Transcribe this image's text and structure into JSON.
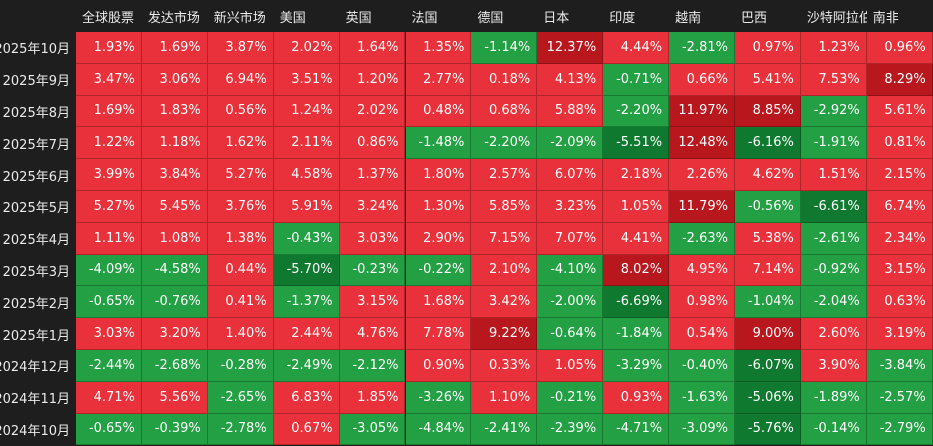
{
  "chart_data": {
    "type": "heatmap",
    "columns": [
      "全球股票",
      "发达市场",
      "新兴市场",
      "美国",
      "英国",
      "法国",
      "德国",
      "日本",
      "印度",
      "越南",
      "巴西",
      "沙特阿拉伯",
      "南非"
    ],
    "rows": [
      {
        "label": "2025年10月",
        "values": [
          "1.93%",
          "1.69%",
          "3.87%",
          "2.02%",
          "1.64%",
          "1.35%",
          "-1.14%",
          "12.37%",
          "4.44%",
          "-2.81%",
          "0.97%",
          "1.23%",
          "0.96%"
        ]
      },
      {
        "label": "2025年9月",
        "values": [
          "3.47%",
          "3.06%",
          "6.94%",
          "3.51%",
          "1.20%",
          "2.77%",
          "0.18%",
          "4.13%",
          "-0.71%",
          "0.66%",
          "5.41%",
          "7.53%",
          "8.29%"
        ]
      },
      {
        "label": "2025年8月",
        "values": [
          "1.69%",
          "1.83%",
          "0.56%",
          "1.24%",
          "2.02%",
          "0.48%",
          "0.68%",
          "5.88%",
          "-2.20%",
          "11.97%",
          "8.85%",
          "-2.92%",
          "5.61%"
        ]
      },
      {
        "label": "2025年7月",
        "values": [
          "1.22%",
          "1.18%",
          "1.62%",
          "2.11%",
          "0.86%",
          "-1.48%",
          "-2.20%",
          "-2.09%",
          "-5.51%",
          "12.48%",
          "-6.16%",
          "-1.91%",
          "0.81%"
        ]
      },
      {
        "label": "2025年6月",
        "values": [
          "3.99%",
          "3.84%",
          "5.27%",
          "4.58%",
          "1.37%",
          "1.80%",
          "2.57%",
          "6.07%",
          "2.18%",
          "2.26%",
          "4.62%",
          "1.51%",
          "2.15%"
        ]
      },
      {
        "label": "2025年5月",
        "values": [
          "5.27%",
          "5.45%",
          "3.76%",
          "5.91%",
          "3.24%",
          "1.30%",
          "5.85%",
          "3.23%",
          "1.05%",
          "11.79%",
          "-0.56%",
          "-6.61%",
          "6.74%"
        ]
      },
      {
        "label": "2025年4月",
        "values": [
          "1.11%",
          "1.08%",
          "1.38%",
          "-0.43%",
          "3.03%",
          "2.90%",
          "7.15%",
          "7.07%",
          "4.41%",
          "-2.63%",
          "5.38%",
          "-2.61%",
          "2.34%"
        ]
      },
      {
        "label": "2025年3月",
        "values": [
          "-4.09%",
          "-4.58%",
          "0.44%",
          "-5.70%",
          "-0.23%",
          "-0.22%",
          "2.10%",
          "-4.10%",
          "8.02%",
          "4.95%",
          "7.14%",
          "-0.92%",
          "3.15%"
        ]
      },
      {
        "label": "2025年2月",
        "values": [
          "-0.65%",
          "-0.76%",
          "0.41%",
          "-1.37%",
          "3.15%",
          "1.68%",
          "3.42%",
          "-2.00%",
          "-6.69%",
          "0.98%",
          "-1.04%",
          "-2.04%",
          "0.63%"
        ]
      },
      {
        "label": "2025年1月",
        "values": [
          "3.03%",
          "3.20%",
          "1.40%",
          "2.44%",
          "4.76%",
          "7.78%",
          "9.22%",
          "-0.64%",
          "-1.84%",
          "0.54%",
          "9.00%",
          "2.60%",
          "3.19%"
        ]
      },
      {
        "label": "2024年12月",
        "values": [
          "-2.44%",
          "-2.68%",
          "-0.28%",
          "-2.49%",
          "-2.12%",
          "0.90%",
          "0.33%",
          "1.05%",
          "-3.29%",
          "-0.40%",
          "-6.07%",
          "3.90%",
          "-3.84%"
        ]
      },
      {
        "label": "2024年11月",
        "values": [
          "4.71%",
          "5.56%",
          "-2.65%",
          "6.83%",
          "1.85%",
          "-3.26%",
          "1.10%",
          "-0.21%",
          "0.93%",
          "-1.63%",
          "-5.06%",
          "-1.89%",
          "-2.57%"
        ]
      },
      {
        "label": "2024年10月",
        "values": [
          "-0.65%",
          "-0.39%",
          "-2.78%",
          "0.67%",
          "-3.05%",
          "-4.84%",
          "-2.41%",
          "-2.39%",
          "-4.71%",
          "-3.09%",
          "-5.76%",
          "-0.14%",
          "-2.79%"
        ]
      }
    ],
    "colors": {
      "positive": "#e8313a",
      "positive_strong": "#b8171d",
      "negative": "#22a043",
      "negative_strong": "#0f7a2f",
      "background": "#1e1e1e"
    }
  }
}
